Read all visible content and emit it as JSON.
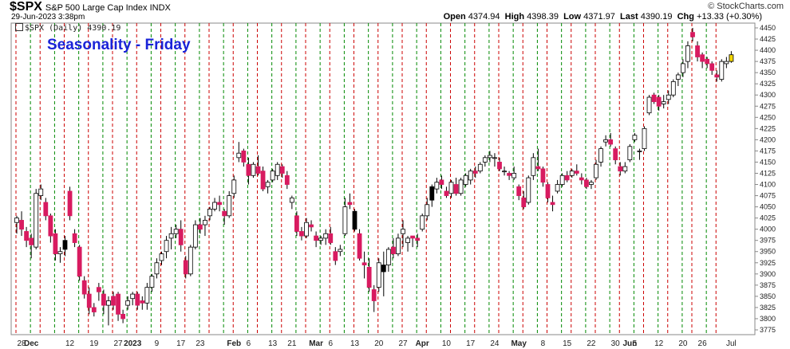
{
  "header": {
    "symbol": "$SPX",
    "name": "S&P 500 Large Cap Index  INDX",
    "date": "29-Jun-2023 3:38pm",
    "credit": "© StockCharts.com",
    "quote": {
      "open": "4374.94",
      "high": "4398.39",
      "low": "4371.97",
      "last": "4390.19",
      "chg": "+13.33 (+0.30%)"
    },
    "quote_labels": {
      "open": "Open",
      "high": "High",
      "low": "Low",
      "last": "Last",
      "chg": "Chg"
    }
  },
  "legend": "$SPX (Daily) 4390.19",
  "chart_data": {
    "type": "candlestick",
    "title": "Seasonality - Friday",
    "ylim": [
      3775,
      4450
    ],
    "y_ticks": [
      4450,
      4425,
      4400,
      4375,
      4350,
      4325,
      4300,
      4275,
      4250,
      4225,
      4200,
      4175,
      4150,
      4125,
      4100,
      4075,
      4050,
      4025,
      4000,
      3975,
      3950,
      3925,
      3900,
      3875,
      3850,
      3825,
      3800,
      3775
    ],
    "x_ticks": [
      {
        "label": "28",
        "i": 1
      },
      {
        "label": "Dec",
        "i": 3,
        "bold": true
      },
      {
        "label": "12",
        "i": 11
      },
      {
        "label": "19",
        "i": 16
      },
      {
        "label": "27",
        "i": 21
      },
      {
        "label": "2023",
        "i": 24,
        "bold": true
      },
      {
        "label": "9",
        "i": 29
      },
      {
        "label": "17",
        "i": 34
      },
      {
        "label": "23",
        "i": 38
      },
      {
        "label": "Feb",
        "i": 45,
        "bold": true
      },
      {
        "label": "6",
        "i": 48
      },
      {
        "label": "13",
        "i": 53
      },
      {
        "label": "21",
        "i": 57
      },
      {
        "label": "Mar",
        "i": 62,
        "bold": true
      },
      {
        "label": "6",
        "i": 65
      },
      {
        "label": "13",
        "i": 70
      },
      {
        "label": "20",
        "i": 75
      },
      {
        "label": "27",
        "i": 80
      },
      {
        "label": "Apr",
        "i": 84,
        "bold": true
      },
      {
        "label": "10",
        "i": 89
      },
      {
        "label": "17",
        "i": 94
      },
      {
        "label": "24",
        "i": 99
      },
      {
        "label": "May",
        "i": 104,
        "bold": true
      },
      {
        "label": "8",
        "i": 109
      },
      {
        "label": "15",
        "i": 114
      },
      {
        "label": "22",
        "i": 119
      },
      {
        "label": "30",
        "i": 124
      },
      {
        "label": "Jun",
        "i": 127,
        "bold": true
      },
      {
        "label": "5",
        "i": 128
      },
      {
        "label": "12",
        "i": 133
      },
      {
        "label": "20",
        "i": 138
      },
      {
        "label": "26",
        "i": 142
      },
      {
        "label": "Jul",
        "i": 148
      }
    ],
    "friday_lines": [
      0,
      5,
      10,
      15,
      20,
      25,
      30,
      35,
      40,
      45,
      50,
      55,
      60,
      65,
      70,
      75,
      80,
      85,
      90,
      95,
      100,
      105,
      110,
      115,
      120,
      125,
      130,
      135,
      140,
      145
    ],
    "other_lines": [
      3,
      8,
      13,
      18,
      23,
      28,
      33,
      38,
      43,
      48,
      53,
      58,
      63,
      68,
      73,
      78,
      83,
      88,
      93,
      98,
      103,
      108,
      113,
      118,
      123,
      128,
      133,
      138,
      143
    ],
    "colors": {
      "up": "#ffffff",
      "down": "#d81b60",
      "black": "#000000",
      "friday": "#cc0000",
      "other": "#008800",
      "last": "#f5d800"
    },
    "ohlc": [
      [
        4015,
        4030,
        3990,
        4025
      ],
      [
        4020,
        4040,
        3985,
        4000
      ],
      [
        3995,
        4005,
        3960,
        3975
      ],
      [
        3980,
        3990,
        3935,
        3965
      ],
      [
        3960,
        4090,
        3955,
        4080
      ],
      [
        4075,
        4100,
        4065,
        4090
      ],
      [
        4060,
        4070,
        4020,
        4030
      ],
      [
        4030,
        4035,
        3970,
        3985
      ],
      [
        3990,
        4000,
        3930,
        3945
      ],
      [
        3945,
        3960,
        3925,
        3950
      ],
      [
        3955,
        3985,
        3940,
        3975
      ],
      [
        4085,
        4095,
        4020,
        4030
      ],
      [
        3990,
        4000,
        3960,
        3970
      ],
      [
        3960,
        3965,
        3885,
        3895
      ],
      [
        3885,
        3895,
        3845,
        3855
      ],
      [
        3855,
        3870,
        3810,
        3825
      ],
      [
        3825,
        3835,
        3805,
        3815
      ],
      [
        3870,
        3880,
        3840,
        3860
      ],
      [
        3855,
        3865,
        3810,
        3830
      ],
      [
        3830,
        3850,
        3785,
        3840
      ],
      [
        3850,
        3860,
        3820,
        3830
      ],
      [
        3855,
        3860,
        3795,
        3810
      ],
      [
        3810,
        3820,
        3790,
        3800
      ],
      [
        3830,
        3850,
        3820,
        3840
      ],
      [
        3845,
        3860,
        3830,
        3855
      ],
      [
        3855,
        3860,
        3820,
        3830
      ],
      [
        3840,
        3850,
        3820,
        3835
      ],
      [
        3835,
        3880,
        3820,
        3870
      ],
      [
        3870,
        3900,
        3860,
        3895
      ],
      [
        3900,
        3935,
        3890,
        3925
      ],
      [
        3930,
        3950,
        3920,
        3945
      ],
      [
        3950,
        3985,
        3935,
        3975
      ],
      [
        3980,
        4005,
        3955,
        3990
      ],
      [
        3990,
        4010,
        3980,
        4000
      ],
      [
        4000,
        4020,
        3950,
        3965
      ],
      [
        3930,
        3940,
        3890,
        3900
      ],
      [
        3900,
        3965,
        3895,
        3960
      ],
      [
        3960,
        4020,
        3955,
        4010
      ],
      [
        4010,
        4025,
        3990,
        4000
      ],
      [
        4010,
        4030,
        3985,
        4020
      ],
      [
        4030,
        4050,
        4020,
        4045
      ],
      [
        4045,
        4070,
        4040,
        4060
      ],
      [
        4060,
        4075,
        4040,
        4055
      ],
      [
        4040,
        4045,
        4010,
        4030
      ],
      [
        4030,
        4085,
        4025,
        4075
      ],
      [
        4080,
        4120,
        4070,
        4110
      ],
      [
        4160,
        4195,
        4150,
        4170
      ],
      [
        4175,
        4180,
        4140,
        4150
      ],
      [
        4145,
        4160,
        4100,
        4120
      ],
      [
        4120,
        4150,
        4115,
        4145
      ],
      [
        4140,
        4165,
        4120,
        4125
      ],
      [
        4130,
        4140,
        4085,
        4090
      ],
      [
        4095,
        4110,
        4080,
        4105
      ],
      [
        4110,
        4135,
        4105,
        4130
      ],
      [
        4120,
        4150,
        4110,
        4145
      ],
      [
        4140,
        4145,
        4115,
        4125
      ],
      [
        4120,
        4130,
        4090,
        4100
      ],
      [
        4060,
        4075,
        4045,
        4070
      ],
      [
        4030,
        4040,
        3985,
        3995
      ],
      [
        3995,
        4005,
        3975,
        3985
      ],
      [
        3985,
        4025,
        3980,
        4015
      ],
      [
        4010,
        4020,
        3995,
        4005
      ],
      [
        3985,
        3995,
        3960,
        3975
      ],
      [
        3975,
        3985,
        3965,
        3980
      ],
      [
        3980,
        4000,
        3965,
        3990
      ],
      [
        3990,
        4005,
        3965,
        3970
      ],
      [
        3950,
        3960,
        3920,
        3930
      ],
      [
        3950,
        3965,
        3940,
        3955
      ],
      [
        3990,
        4070,
        3985,
        4050
      ],
      [
        4060,
        4080,
        4045,
        4055
      ],
      [
        4040,
        4045,
        3995,
        4000
      ],
      [
        3990,
        4000,
        3930,
        3935
      ],
      [
        3925,
        3950,
        3890,
        3920
      ],
      [
        3915,
        3935,
        3860,
        3870
      ],
      [
        3865,
        3875,
        3815,
        3840
      ],
      [
        3870,
        3935,
        3860,
        3925
      ],
      [
        3920,
        3950,
        3850,
        3905
      ],
      [
        3920,
        3960,
        3905,
        3955
      ],
      [
        3960,
        3980,
        3935,
        3945
      ],
      [
        3945,
        3990,
        3940,
        3980
      ],
      [
        3990,
        4020,
        3960,
        4000
      ],
      [
        3970,
        3985,
        3950,
        3980
      ],
      [
        3985,
        3985,
        3960,
        3980
      ],
      [
        3980,
        3990,
        3960,
        3975
      ],
      [
        4000,
        4035,
        3995,
        4030
      ],
      [
        4030,
        4070,
        4020,
        4055
      ],
      [
        4065,
        4100,
        4050,
        4095
      ],
      [
        4090,
        4115,
        4080,
        4105
      ],
      [
        4110,
        4120,
        4090,
        4100
      ],
      [
        4085,
        4095,
        4070,
        4075
      ],
      [
        4080,
        4110,
        4070,
        4105
      ],
      [
        4100,
        4115,
        4075,
        4080
      ],
      [
        4080,
        4115,
        4075,
        4110
      ],
      [
        4100,
        4125,
        4095,
        4120
      ],
      [
        4110,
        4135,
        4100,
        4130
      ],
      [
        4130,
        4140,
        4115,
        4125
      ],
      [
        4130,
        4150,
        4125,
        4145
      ],
      [
        4150,
        4165,
        4140,
        4160
      ],
      [
        4160,
        4175,
        4150,
        4165
      ],
      [
        4160,
        4170,
        4140,
        4160
      ],
      [
        4150,
        4160,
        4130,
        4135
      ],
      [
        4130,
        4140,
        4120,
        4130
      ],
      [
        4125,
        4130,
        4110,
        4120
      ],
      [
        4115,
        4140,
        4110,
        4125
      ],
      [
        4095,
        4100,
        4065,
        4075
      ],
      [
        4070,
        4085,
        4045,
        4050
      ],
      [
        4060,
        4120,
        4055,
        4115
      ],
      [
        4120,
        4170,
        4110,
        4160
      ],
      [
        4140,
        4180,
        4130,
        4135
      ],
      [
        4135,
        4140,
        4095,
        4105
      ],
      [
        4100,
        4105,
        4060,
        4070
      ],
      [
        4060,
        4075,
        4040,
        4055
      ],
      [
        4085,
        4110,
        4080,
        4100
      ],
      [
        4100,
        4125,
        4095,
        4120
      ],
      [
        4120,
        4130,
        4105,
        4110
      ],
      [
        4120,
        4135,
        4115,
        4130
      ],
      [
        4130,
        4145,
        4120,
        4125
      ],
      [
        4115,
        4125,
        4100,
        4110
      ],
      [
        4110,
        4115,
        4090,
        4095
      ],
      [
        4100,
        4110,
        4090,
        4105
      ],
      [
        4115,
        4155,
        4110,
        4145
      ],
      [
        4150,
        4185,
        4140,
        4180
      ],
      [
        4195,
        4210,
        4185,
        4200
      ],
      [
        4200,
        4215,
        4185,
        4190
      ],
      [
        4180,
        4185,
        4145,
        4155
      ],
      [
        4140,
        4150,
        4120,
        4130
      ],
      [
        4130,
        4150,
        4125,
        4140
      ],
      [
        4155,
        4190,
        4150,
        4185
      ],
      [
        4200,
        4215,
        4195,
        4210
      ],
      [
        4175,
        4180,
        4155,
        4175
      ],
      [
        4180,
        4230,
        4175,
        4225
      ],
      [
        4260,
        4300,
        4255,
        4295
      ],
      [
        4300,
        4305,
        4280,
        4285
      ],
      [
        4295,
        4300,
        4265,
        4275
      ],
      [
        4280,
        4300,
        4270,
        4285
      ],
      [
        4290,
        4310,
        4280,
        4300
      ],
      [
        4300,
        4335,
        4295,
        4330
      ],
      [
        4335,
        4350,
        4320,
        4345
      ],
      [
        4350,
        4380,
        4340,
        4370
      ],
      [
        4375,
        4420,
        4360,
        4410
      ],
      [
        4440,
        4450,
        4420,
        4430
      ],
      [
        4410,
        4420,
        4375,
        4385
      ],
      [
        4390,
        4395,
        4360,
        4375
      ],
      [
        4380,
        4385,
        4360,
        4370
      ],
      [
        4370,
        4375,
        4345,
        4355
      ],
      [
        4345,
        4355,
        4330,
        4340
      ],
      [
        4335,
        4380,
        4330,
        4375
      ],
      [
        4370,
        4385,
        4360,
        4375
      ],
      [
        4375,
        4398,
        4372,
        4390
      ]
    ],
    "marker_types": {
      "black": [
        10,
        70,
        76,
        86
      ],
      "thin": []
    }
  }
}
